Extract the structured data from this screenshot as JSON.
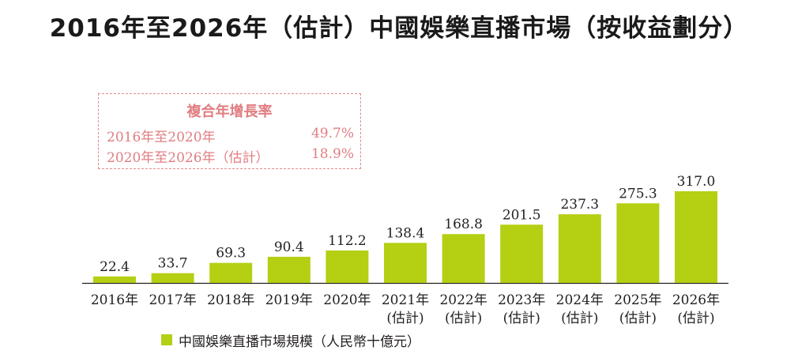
{
  "title": "2016年至2026年（估計）中國娛樂直播市場（按收益劃分）",
  "cagr": {
    "heading": "複合年增長率",
    "rows": [
      {
        "period": "2016年至2020年",
        "rate": "49.7%"
      },
      {
        "period": "2020年至2026年（估計）",
        "rate": "18.9%"
      }
    ]
  },
  "legend": {
    "label": "中國娛樂直播市場規模（人民幣十億元）"
  },
  "colors": {
    "bar": "#b5cf13",
    "cagr_text": "#e07e82",
    "axis": "#231f20"
  },
  "chart_data": {
    "type": "bar",
    "categories": [
      "2016年",
      "2017年",
      "2018年",
      "2019年",
      "2020年",
      "2021年",
      "2022年",
      "2023年",
      "2024年",
      "2025年",
      "2026年"
    ],
    "category_sublabels": [
      "",
      "",
      "",
      "",
      "",
      "(估計)",
      "(估計)",
      "(估計)",
      "(估計)",
      "(估計)",
      "(估計)"
    ],
    "series": [
      {
        "name": "中國娛樂直播市場規模（人民幣十億元）",
        "values": [
          22.4,
          33.7,
          69.3,
          90.4,
          112.2,
          138.4,
          168.8,
          201.5,
          237.3,
          275.3,
          317.0
        ]
      }
    ],
    "value_labels": [
      "22.4",
      "33.7",
      "69.3",
      "90.4",
      "112.2",
      "138.4",
      "168.8",
      "201.5",
      "237.3",
      "275.3",
      "317.0"
    ],
    "ylim": [
      0,
      317.0
    ],
    "grid": false,
    "legend_position": "bottom-left"
  }
}
